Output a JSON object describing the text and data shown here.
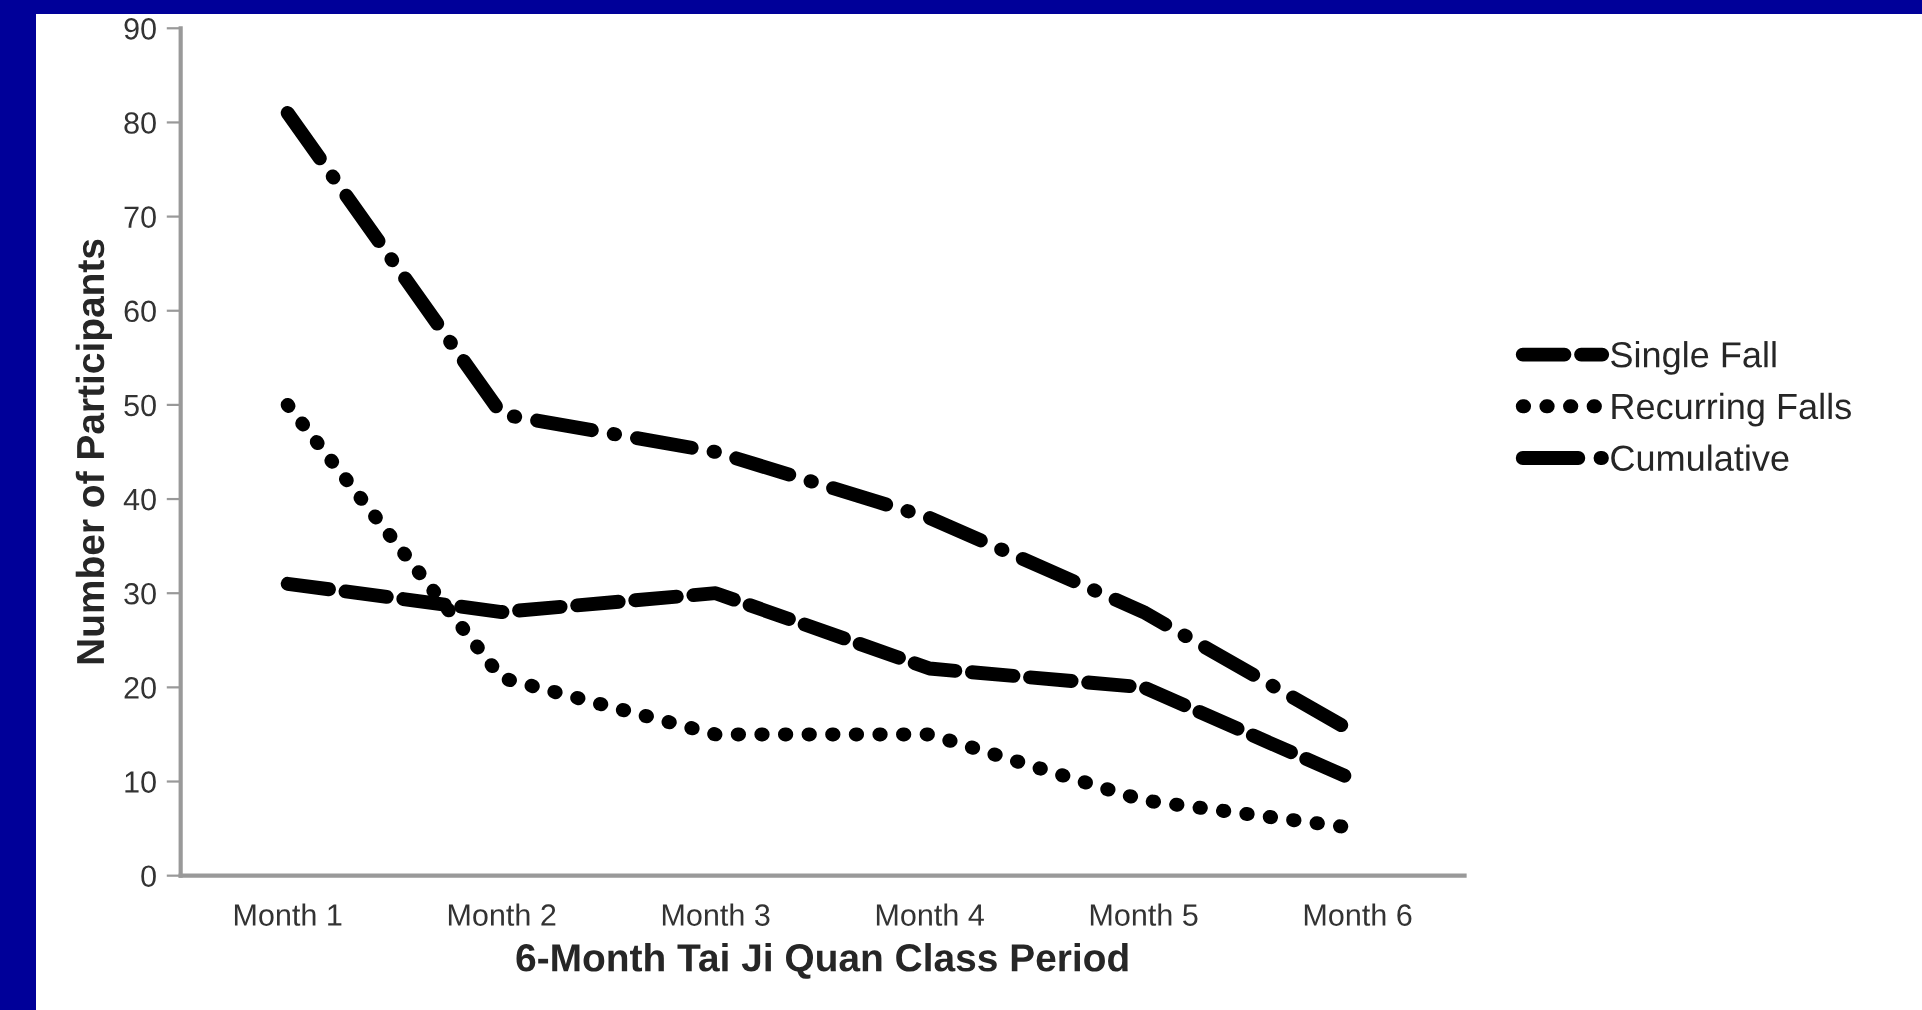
{
  "chart_data": {
    "type": "line",
    "xlabel": "6-Month Tai Ji Quan Class Period",
    "ylabel": "Number of Participants",
    "categories": [
      "Month 1",
      "Month 2",
      "Month 3",
      "Month 4",
      "Month 5",
      "Month 6"
    ],
    "series": [
      {
        "name": "Single Fall",
        "color": "#000000",
        "line_style": "dashed",
        "values": [
          31,
          28,
          30,
          22,
          20,
          10
        ]
      },
      {
        "name": "Recurring Falls",
        "color": "#000000",
        "line_style": "dotted",
        "values": [
          50,
          21,
          15,
          15,
          8,
          5
        ]
      },
      {
        "name": "Cumulative",
        "color": "#000000",
        "line_style": "dashdot",
        "values": [
          81,
          49,
          45,
          38,
          28,
          15
        ]
      }
    ],
    "ylim": [
      0,
      90
    ],
    "yticks": [
      0,
      10,
      20,
      30,
      40,
      50,
      60,
      70,
      80,
      90
    ],
    "grid": false,
    "legend": "right",
    "marker": "none"
  }
}
